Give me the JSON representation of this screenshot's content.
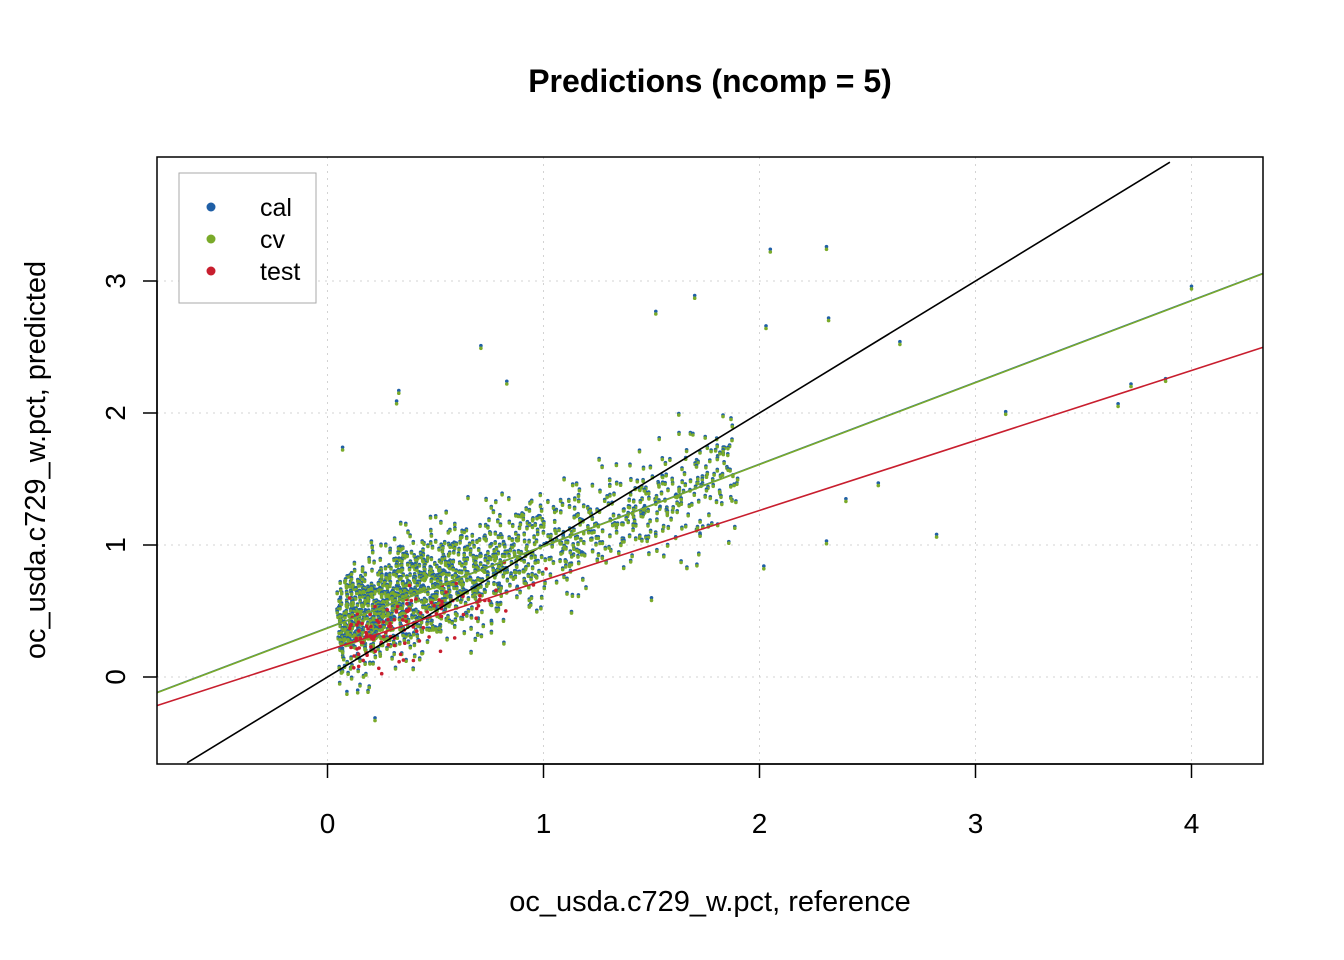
{
  "chart_data": {
    "type": "scatter",
    "title": "Predictions (ncomp = 5)",
    "xlabel": "oc_usda.c729_w.pct, reference",
    "ylabel": "oc_usda.c729_w.pct, predicted",
    "xlim": [
      -0.79,
      4.33
    ],
    "ylim": [
      -0.65,
      3.9
    ],
    "xticks": [
      0,
      1,
      2,
      3,
      4
    ],
    "yticks": [
      0,
      1,
      2,
      3
    ],
    "grid": true,
    "legend_position": "top-left",
    "series": [
      {
        "name": "cal",
        "color": "#1f5fa6"
      },
      {
        "name": "cv",
        "color": "#7aaa2a"
      },
      {
        "name": "test",
        "color": "#c81e2e"
      }
    ],
    "lines": [
      {
        "label": "",
        "color": "#000000",
        "intercept": 0.0,
        "slope": 1.0
      },
      {
        "label": "",
        "color": "#1f5fa6",
        "intercept": 0.372,
        "slope": 0.62
      },
      {
        "label": "",
        "color": "#7aaa2a",
        "intercept": 0.37,
        "slope": 0.62
      },
      {
        "label": "",
        "color": "#c81e2e",
        "intercept": 0.202,
        "slope": 0.53
      }
    ],
    "outliers": {
      "x": [
        0.07,
        0.33,
        0.32,
        0.71,
        0.83,
        1.52,
        1.7,
        2.03,
        2.05,
        2.31,
        2.32,
        2.65,
        2.82,
        3.14,
        3.66,
        3.72,
        3.88,
        4.0,
        2.55,
        2.4,
        0.22,
        0.14,
        0.09,
        2.02,
        1.5,
        2.31
      ],
      "y": [
        1.72,
        2.15,
        2.07,
        2.49,
        2.22,
        2.75,
        2.87,
        2.64,
        3.22,
        3.24,
        2.7,
        2.52,
        1.06,
        1.99,
        2.05,
        2.2,
        2.24,
        2.94,
        1.45,
        1.33,
        -0.33,
        -0.12,
        -0.13,
        0.82,
        0.58,
        1.01
      ]
    }
  }
}
